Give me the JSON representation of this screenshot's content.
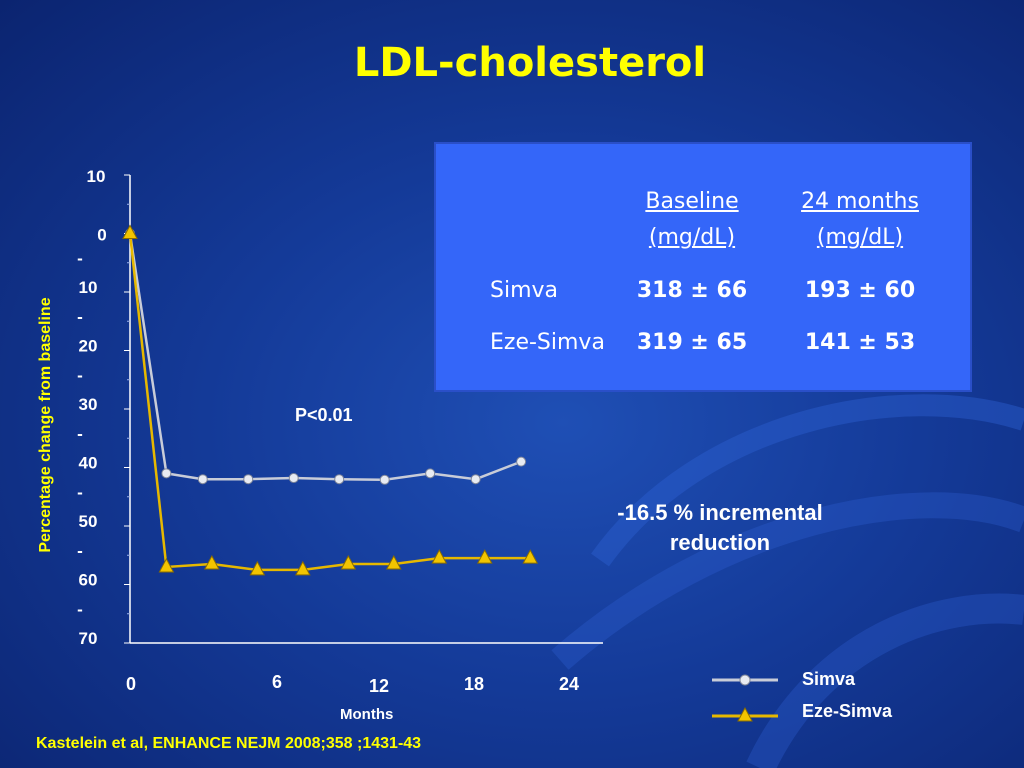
{
  "slide": {
    "title": "LDL-cholesterol",
    "citation": "Kastelein et al, ENHANCE NEJM 2008;358 ;1431-43",
    "p_value": "P<0.01",
    "annotation_line1": "-16.5 % incremental",
    "annotation_line2": "reduction"
  },
  "table": {
    "col1_line1": "Baseline",
    "col1_line2": "(mg/dL)",
    "col2_line1": "24 months",
    "col2_line2": "(mg/dL)",
    "rows": [
      {
        "label": "Simva",
        "baseline": "318 ± 66",
        "month24": "193 ± 60"
      },
      {
        "label": "Eze-Simva",
        "baseline": "319 ± 65",
        "month24": "141 ± 53"
      }
    ]
  },
  "chart_data": {
    "type": "line",
    "xlabel": "Months",
    "ylabel": "Percentage change from baseline",
    "ylim": [
      -70,
      10
    ],
    "xlim": [
      0,
      26
    ],
    "x_ticks": [
      "0",
      "6",
      "12",
      "18",
      "24"
    ],
    "y_ticks": [
      {
        "value": 10,
        "lines": [
          "10"
        ]
      },
      {
        "value": 0,
        "lines": [
          "0"
        ]
      },
      {
        "value": -10,
        "lines": [
          "-",
          "10"
        ]
      },
      {
        "value": -20,
        "lines": [
          "-",
          "20"
        ]
      },
      {
        "value": -30,
        "lines": [
          "-",
          "30"
        ]
      },
      {
        "value": -40,
        "lines": [
          "-",
          "40"
        ]
      },
      {
        "value": -50,
        "lines": [
          "-",
          "50"
        ]
      },
      {
        "value": -60,
        "lines": [
          "-",
          "60"
        ]
      },
      {
        "value": -70,
        "lines": [
          "-",
          "70"
        ]
      }
    ],
    "series": [
      {
        "name": "Simva",
        "color": "#c8ccd8",
        "marker": "circle",
        "points": [
          [
            0,
            0
          ],
          [
            2,
            -41
          ],
          [
            4,
            -42
          ],
          [
            6.5,
            -42
          ],
          [
            9,
            -41.8
          ],
          [
            11.5,
            -42
          ],
          [
            14,
            -42.1
          ],
          [
            16.5,
            -41
          ],
          [
            19,
            -42
          ],
          [
            21.5,
            -39
          ]
        ]
      },
      {
        "name": "Eze-Simva",
        "color": "#e6b800",
        "marker": "triangle",
        "points": [
          [
            0,
            0
          ],
          [
            2,
            -57
          ],
          [
            4.5,
            -56.5
          ],
          [
            7,
            -57.5
          ],
          [
            9.5,
            -57.5
          ],
          [
            12,
            -56.5
          ],
          [
            14.5,
            -56.5
          ],
          [
            17,
            -55.5
          ],
          [
            19.5,
            -55.5
          ],
          [
            22,
            -55.5
          ]
        ]
      }
    ]
  }
}
